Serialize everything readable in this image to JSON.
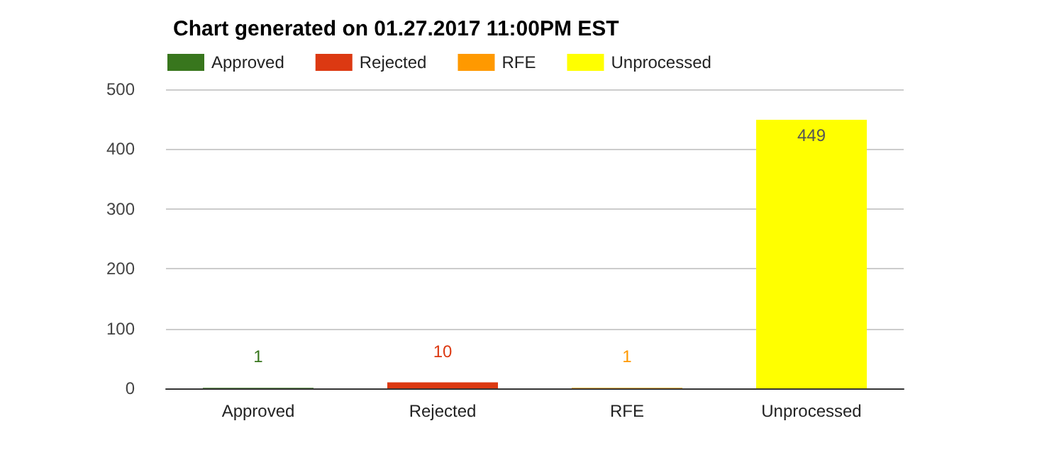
{
  "chart_data": {
    "type": "bar",
    "title": "Chart generated on 01.27.2017 11:00PM EST",
    "categories": [
      "Approved",
      "Rejected",
      "RFE",
      "Unprocessed"
    ],
    "stacked": true,
    "series": [
      {
        "name": "Approved",
        "color": "#38761d",
        "values": [
          1,
          null,
          null,
          null
        ]
      },
      {
        "name": "Rejected",
        "color": "#dc3912",
        "values": [
          null,
          10,
          null,
          null
        ]
      },
      {
        "name": "RFE",
        "color": "#ff9900",
        "values": [
          null,
          null,
          1,
          null
        ]
      },
      {
        "name": "Unprocessed",
        "color": "#ffff00",
        "values": [
          null,
          null,
          null,
          449
        ]
      }
    ],
    "ylim": [
      0,
      500
    ],
    "yticks": [
      0,
      100,
      200,
      300,
      400,
      500
    ],
    "grid": "y",
    "legend": "top left",
    "data_labels": true
  }
}
